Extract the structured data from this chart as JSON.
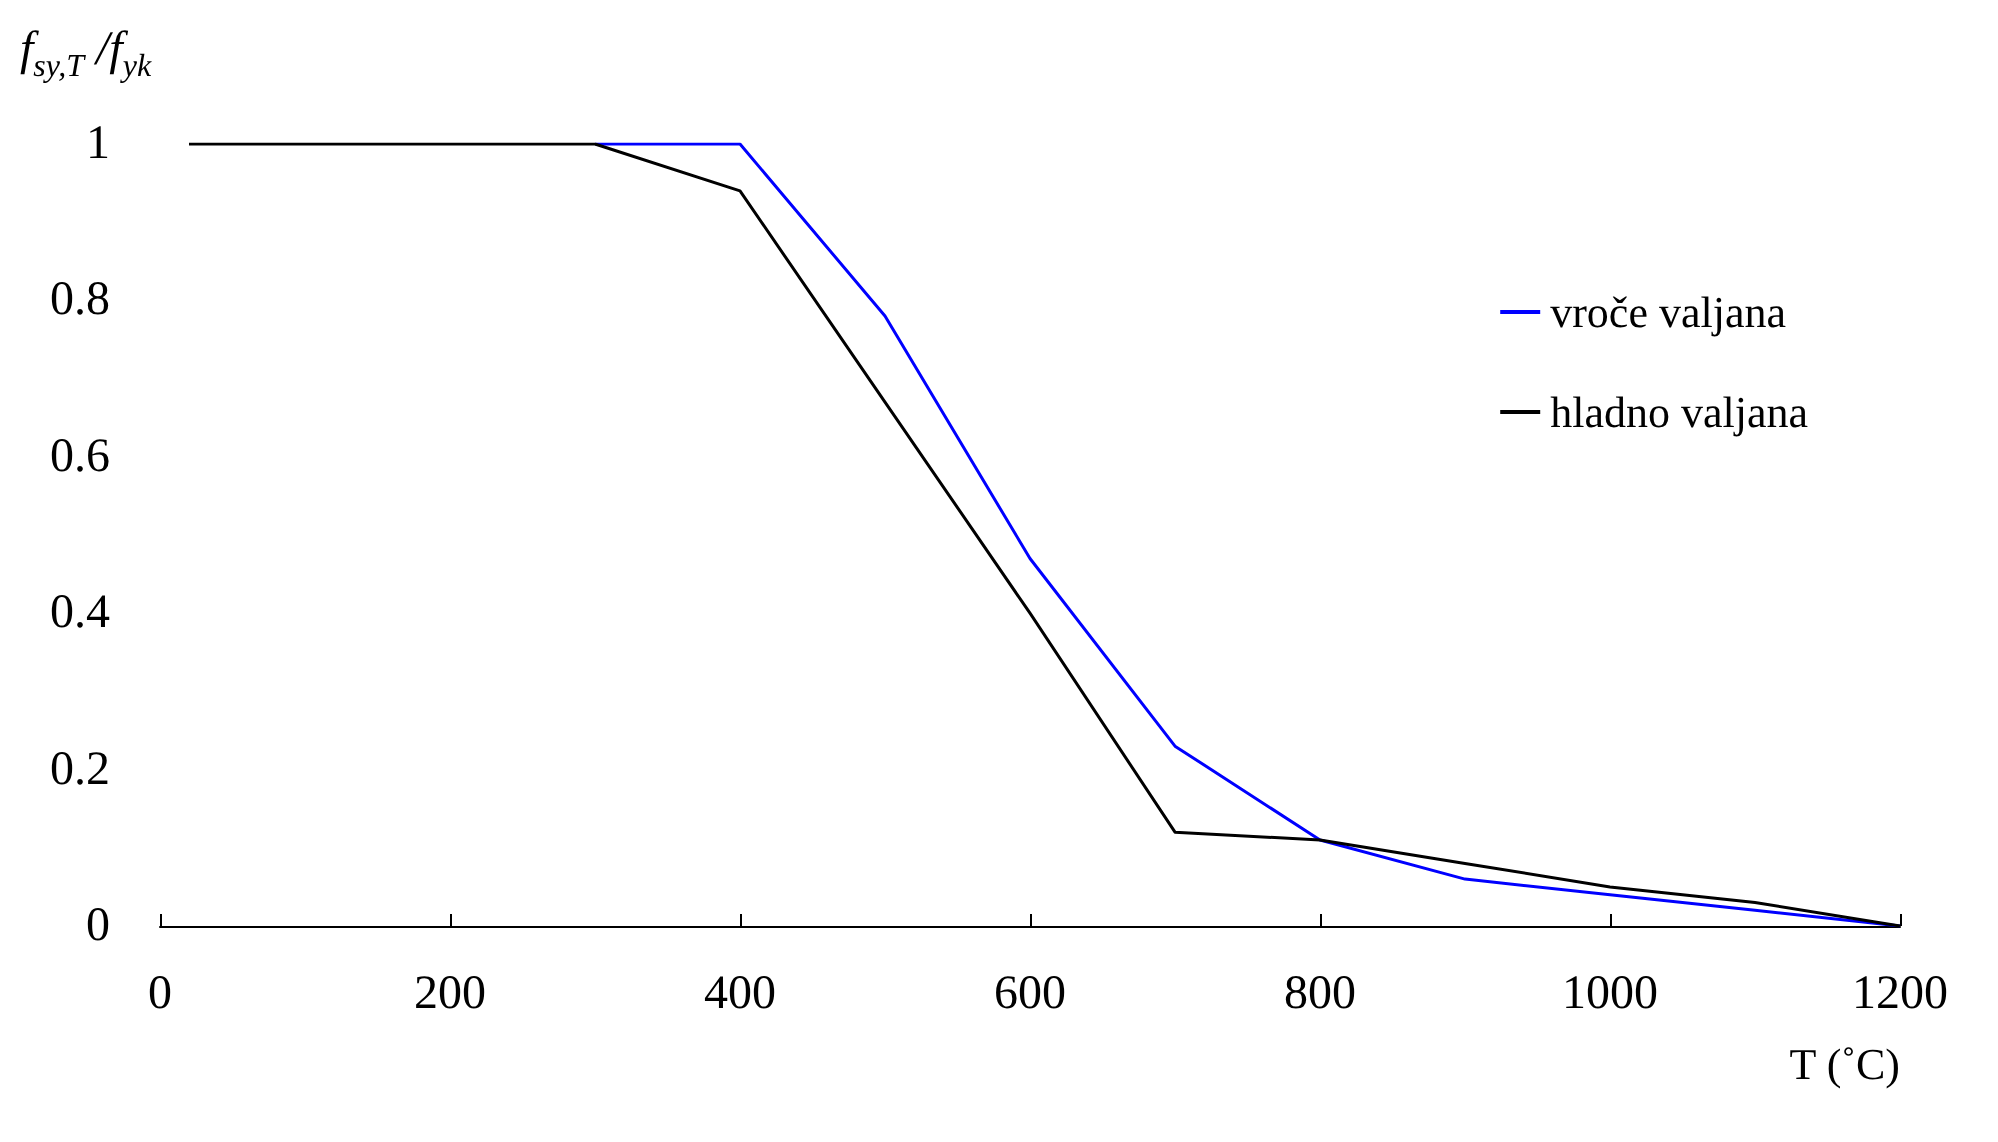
{
  "chart_data": {
    "type": "line",
    "ylabel": "f$_{sy,T}$ /f$_{yk}$",
    "xlabel": "T (˚C)",
    "x": [
      20,
      100,
      200,
      300,
      400,
      500,
      600,
      700,
      800,
      900,
      1000,
      1100,
      1200
    ],
    "series": [
      {
        "name": "vroče valjana",
        "color": "#0000ff",
        "values": [
          null,
          null,
          null,
          1,
          1,
          0.78,
          0.47,
          0.23,
          0.11,
          0.06,
          0.04,
          0.02,
          0
        ]
      },
      {
        "name": "hladno valjana",
        "color": "#000000",
        "values": [
          1,
          1,
          1,
          1,
          0.94,
          0.67,
          0.4,
          0.12,
          0.11,
          0.08,
          0.05,
          0.03,
          0
        ]
      }
    ],
    "xlim": [
      0,
      1200
    ],
    "xticks": [
      0,
      200,
      400,
      600,
      800,
      1000,
      1200
    ],
    "ylim": [
      0,
      1
    ],
    "yticks": [
      0,
      0.2,
      0.4,
      0.6,
      0.8,
      1
    ],
    "grid": false,
    "legend": "right",
    "marker": "none",
    "line_style": "solid"
  }
}
